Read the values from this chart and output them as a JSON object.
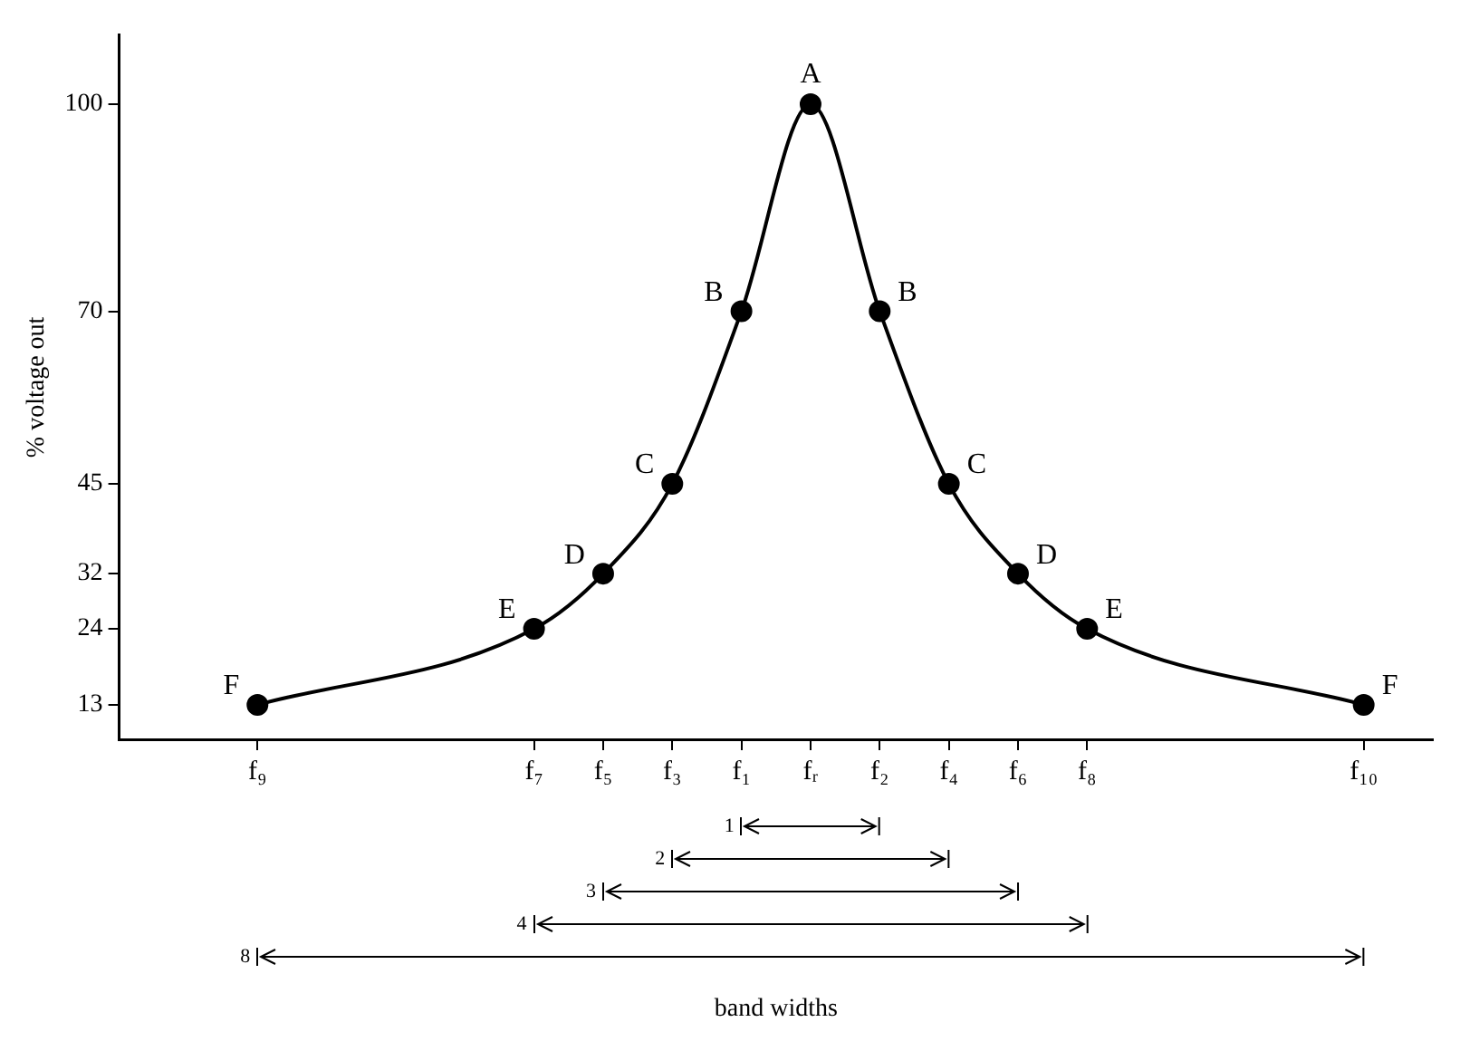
{
  "chart_data": {
    "type": "line",
    "ylabel": "% voltage out",
    "categories": [
      null,
      null,
      "f₉",
      null,
      null,
      null,
      "f₇",
      "f₅",
      "f₃",
      "f₁",
      "fᵣ",
      "f₂",
      "f₄",
      "f₆",
      "f₈",
      null,
      null,
      null,
      "f₁₀",
      null
    ],
    "values": [
      null,
      null,
      13,
      null,
      null,
      null,
      24,
      32,
      45,
      70,
      100,
      70,
      45,
      32,
      24,
      null,
      null,
      null,
      13,
      null
    ],
    "color": "#000000",
    "marker": "circle",
    "line_style": "solid",
    "grid": false,
    "legend": false,
    "ylim": [
      8,
      110
    ],
    "yticks": [
      13,
      24,
      32,
      45,
      70,
      100
    ],
    "annotations": [
      {
        "text": "A",
        "x": "fᵣ",
        "y": 100
      },
      {
        "text": "B",
        "x": "f₁",
        "y": 70
      },
      {
        "text": "B",
        "x": "f₂",
        "y": 70
      },
      {
        "text": "C",
        "x": "f₃",
        "y": 45
      },
      {
        "text": "C",
        "x": "f₄",
        "y": 45
      },
      {
        "text": "D",
        "x": "f₅",
        "y": 32
      },
      {
        "text": "D",
        "x": "f₆",
        "y": 32
      },
      {
        "text": "E",
        "x": "f₇",
        "y": 24
      },
      {
        "text": "E",
        "x": "f₈",
        "y": 24
      },
      {
        "text": "F",
        "x": "f₉",
        "y": 13
      },
      {
        "text": "F",
        "x": "f₁₀",
        "y": 13
      },
      "1",
      "2",
      "3",
      "4",
      "8",
      "band widths"
    ]
  }
}
